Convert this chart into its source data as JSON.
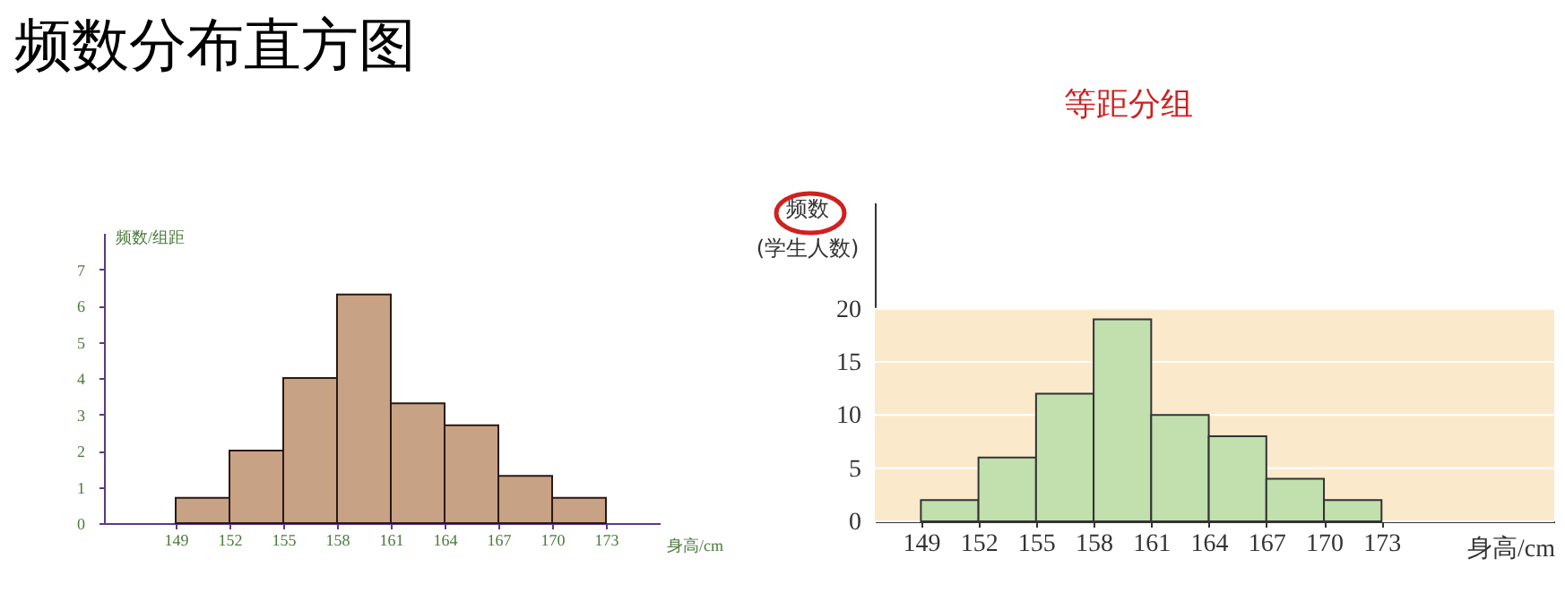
{
  "chart_data": [
    {
      "type": "histogram",
      "title": "频数分布直方图",
      "xlabel": "身高/cm",
      "ylabel": "频数/组距",
      "bins": [
        149,
        152,
        155,
        158,
        161,
        164,
        167,
        170,
        173
      ],
      "values": [
        0.7,
        2,
        4,
        6.3,
        3.3,
        2.7,
        1.3,
        0.7
      ],
      "color": "#c8a285",
      "xlim": [
        145,
        176
      ],
      "xticks": [
        149,
        152,
        155,
        158,
        161,
        164,
        167,
        170,
        173
      ],
      "ylim": [
        0,
        8
      ],
      "yticks": [
        0,
        1,
        2,
        3,
        4,
        5,
        6,
        7
      ],
      "grid": false
    },
    {
      "type": "histogram",
      "title": "等距分组",
      "xlabel": "身高/cm",
      "ylabel": "频数\n(学生人数)",
      "bins": [
        149,
        152,
        155,
        158,
        161,
        164,
        167,
        170,
        173
      ],
      "values": [
        2,
        6,
        12,
        19,
        10,
        8,
        4,
        2
      ],
      "color": "#c2dfae",
      "xlim": [
        146.6,
        182
      ],
      "xticks": [
        149,
        152,
        155,
        158,
        161,
        164,
        167,
        170,
        173
      ],
      "ylim": [
        0,
        30
      ],
      "yticks": [
        0,
        5,
        10,
        15,
        20
      ],
      "grid": "y",
      "bands": [
        {
          "axis": "y",
          "from": 0,
          "to": 20,
          "color": "#fbe9cc"
        }
      ]
    }
  ]
}
